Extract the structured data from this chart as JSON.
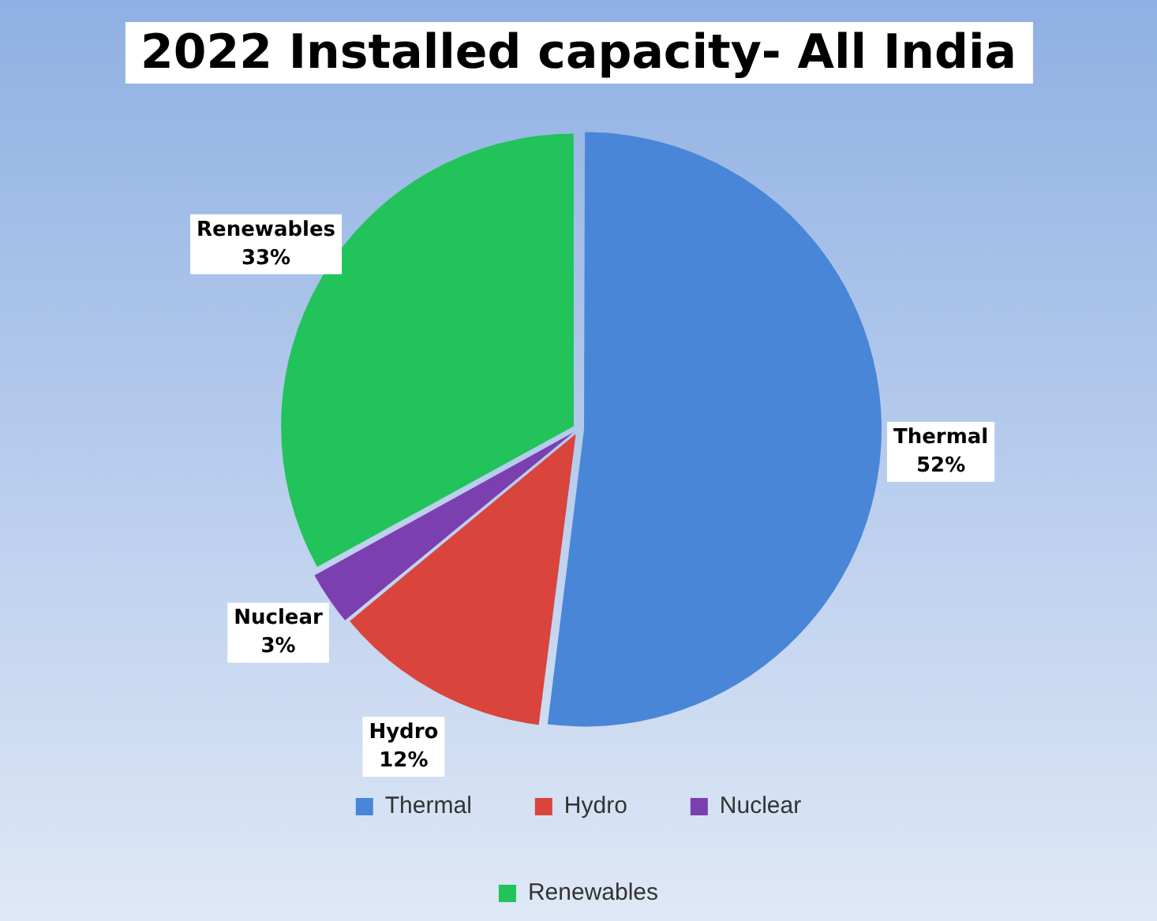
{
  "chart_data": {
    "type": "pie",
    "title": "2022 Installed capacity- All India",
    "categories": [
      "Thermal",
      "Hydro",
      "Nuclear",
      "Renewables"
    ],
    "values": [
      52,
      12,
      3,
      33
    ],
    "colors": [
      "#4a86d8",
      "#d9443c",
      "#7b3fb0",
      "#22c35a"
    ],
    "value_labels": [
      "52%",
      "12%",
      "3%",
      "33%"
    ],
    "legend": "bottom"
  }
}
